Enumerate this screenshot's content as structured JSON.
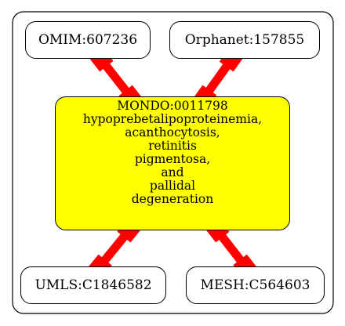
{
  "diagram": {
    "center": {
      "id": "MONDO:0011798",
      "label_lines": [
        "hypoprebetalipoproteinemia,",
        "acanthocytosis,",
        "retinitis",
        "pigmentosa,",
        "and",
        "pallidal",
        "degeneration"
      ],
      "fill": "#ffff00"
    },
    "nodes": [
      {
        "key": "omim",
        "label": "OMIM:607236"
      },
      {
        "key": "orphanet",
        "label": "Orphanet:157855"
      },
      {
        "key": "umls",
        "label": "UMLS:C1846582"
      },
      {
        "key": "mesh",
        "label": "MESH:C564603"
      }
    ],
    "edge_color": "#ff0000"
  }
}
